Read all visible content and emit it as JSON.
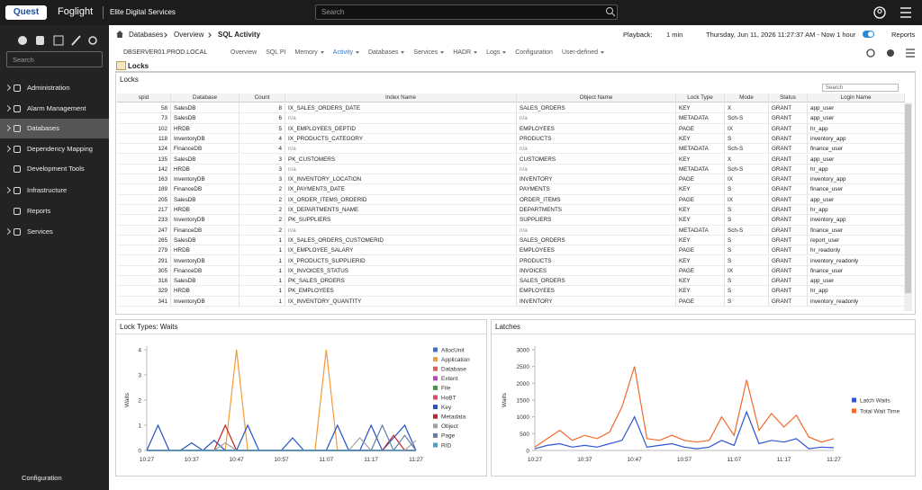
{
  "header": {
    "logo": "Quest",
    "product": "Foglight",
    "org": "Elite Digital Services",
    "search_placeholder": "Search"
  },
  "sidebar": {
    "search_placeholder": "Search",
    "items": [
      "Administration",
      "Alarm Management",
      "Databases",
      "Dependency Mapping",
      "Development Tools",
      "Infrastructure",
      "Reports",
      "Services"
    ],
    "active": "Databases",
    "footer": "Configuration"
  },
  "breadcrumb": [
    "Databases",
    "Overview",
    "SQL Activity"
  ],
  "toolbar": {
    "playback_label": "Playback:",
    "interval": "1 min",
    "time_range": "Thursday, Jun 11, 2026 11:27:37 AM - Now 1 hour",
    "reports": "Reports"
  },
  "server": "DBSERVER01.PROD.LOCAL",
  "tabs": [
    "Overview",
    "SQL PI",
    "Memory",
    "Activity",
    "Databases",
    "Services",
    "HADR",
    "Logs",
    "Configuration",
    "User-defined"
  ],
  "active_tab": "Activity",
  "page_title": "Locks",
  "locks_panel": {
    "title": "Locks",
    "search_placeholder": "Search",
    "columns": [
      "spid",
      "Database",
      "Count",
      "Index Name",
      "Object Name",
      "Lock Type",
      "Mode",
      "Status",
      "Login Name"
    ],
    "rows": [
      [
        58,
        "SalesDB",
        8,
        "IX_SALES_ORDERS_DATE",
        "SALES_ORDERS",
        "KEY",
        "X",
        "GRANT",
        "app_user"
      ],
      [
        73,
        "SalesDB",
        6,
        "n/a",
        "n/a",
        "METADATA",
        "Sch-S",
        "GRANT",
        "app_user"
      ],
      [
        102,
        "HRDB",
        5,
        "IX_EMPLOYEES_DEPTID",
        "EMPLOYEES",
        "PAGE",
        "IX",
        "GRANT",
        "hr_app"
      ],
      [
        118,
        "InventoryDB",
        4,
        "IX_PRODUCTS_CATEGORY",
        "PRODUCTS",
        "KEY",
        "S",
        "GRANT",
        "inventory_app"
      ],
      [
        124,
        "FinanceDB",
        4,
        "n/a",
        "n/a",
        "METADATA",
        "Sch-S",
        "GRANT",
        "finance_user"
      ],
      [
        135,
        "SalesDB",
        3,
        "PK_CUSTOMERS",
        "CUSTOMERS",
        "KEY",
        "X",
        "GRANT",
        "app_user"
      ],
      [
        142,
        "HRDB",
        3,
        "n/a",
        "n/a",
        "METADATA",
        "Sch-S",
        "GRANT",
        "hr_app"
      ],
      [
        163,
        "InventoryDB",
        3,
        "IX_INVENTORY_LOCATION",
        "INVENTORY",
        "PAGE",
        "IX",
        "GRANT",
        "inventory_app"
      ],
      [
        189,
        "FinanceDB",
        2,
        "IX_PAYMENTS_DATE",
        "PAYMENTS",
        "KEY",
        "S",
        "GRANT",
        "finance_user"
      ],
      [
        205,
        "SalesDB",
        2,
        "IX_ORDER_ITEMS_ORDERID",
        "ORDER_ITEMS",
        "PAGE",
        "IX",
        "GRANT",
        "app_user"
      ],
      [
        217,
        "HRDB",
        2,
        "IX_DEPARTMENTS_NAME",
        "DEPARTMENTS",
        "KEY",
        "S",
        "GRANT",
        "hr_app"
      ],
      [
        233,
        "InventoryDB",
        2,
        "PK_SUPPLIERS",
        "SUPPLIERS",
        "KEY",
        "S",
        "GRANT",
        "inventory_app"
      ],
      [
        247,
        "FinanceDB",
        2,
        "n/a",
        "n/a",
        "METADATA",
        "Sch-S",
        "GRANT",
        "finance_user"
      ],
      [
        265,
        "SalesDB",
        1,
        "IX_SALES_ORDERS_CUSTOMERID",
        "SALES_ORDERS",
        "KEY",
        "S",
        "GRANT",
        "report_user"
      ],
      [
        279,
        "HRDB",
        1,
        "IX_EMPLOYEE_SALARY",
        "EMPLOYEES",
        "PAGE",
        "S",
        "GRANT",
        "hr_readonly"
      ],
      [
        291,
        "InventoryDB",
        1,
        "IX_PRODUCTS_SUPPLIERID",
        "PRODUCTS",
        "KEY",
        "S",
        "GRANT",
        "inventory_readonly"
      ],
      [
        305,
        "FinanceDB",
        1,
        "IX_INVOICES_STATUS",
        "INVOICES",
        "PAGE",
        "IX",
        "GRANT",
        "finance_user"
      ],
      [
        318,
        "SalesDB",
        1,
        "PK_SALES_ORDERS",
        "SALES_ORDERS",
        "KEY",
        "S",
        "GRANT",
        "app_user"
      ],
      [
        329,
        "HRDB",
        1,
        "PK_EMPLOYEES",
        "EMPLOYEES",
        "KEY",
        "S",
        "GRANT",
        "hr_app"
      ],
      [
        341,
        "InventoryDB",
        1,
        "IX_INVENTORY_QUANTITY",
        "INVENTORY",
        "PAGE",
        "S",
        "GRANT",
        "inventory_readonly"
      ]
    ]
  },
  "chart_data": [
    {
      "type": "line",
      "title": "Lock Types: Waits",
      "ylabel": "Waits",
      "categories": [
        "10:27",
        null,
        null,
        null,
        "10:37",
        null,
        null,
        null,
        "10:47",
        null,
        null,
        null,
        "10:57",
        null,
        null,
        null,
        "11:07",
        null,
        null,
        null,
        "11:17",
        null,
        null,
        null,
        "11:27"
      ],
      "ylim": [
        0,
        4
      ],
      "yticks": [
        0,
        1,
        2,
        3,
        4
      ],
      "legend": "right",
      "series": [
        {
          "name": "AllocUnit",
          "color": "#3b6fd6",
          "values": [
            0,
            0,
            0,
            0,
            0,
            0,
            0,
            0,
            0,
            0,
            0,
            0,
            0,
            0,
            0,
            0,
            0,
            0,
            0,
            0,
            0,
            0,
            0,
            0,
            0
          ]
        },
        {
          "name": "Application",
          "color": "#f59a3a",
          "values": [
            0,
            0,
            0,
            0,
            0,
            0,
            0,
            0,
            4,
            0,
            0,
            0,
            0,
            0,
            0,
            0,
            4,
            0,
            0,
            0,
            0,
            0,
            0,
            0,
            0
          ]
        },
        {
          "name": "Database",
          "color": "#e0605c",
          "values": [
            0,
            0,
            0,
            0,
            0,
            0,
            0,
            0,
            0,
            0,
            0,
            0,
            0,
            0,
            0,
            0,
            0,
            0,
            0,
            0,
            0,
            0,
            0,
            0,
            0
          ]
        },
        {
          "name": "Extent",
          "color": "#c23fc2",
          "values": [
            0,
            0,
            0,
            0,
            0,
            0,
            0,
            0,
            0,
            0,
            0,
            0,
            0,
            0,
            0,
            0,
            0,
            0,
            0,
            0,
            0,
            0,
            0,
            0,
            0
          ]
        },
        {
          "name": "File",
          "color": "#3e9e3e",
          "values": [
            0,
            0,
            0,
            0,
            0,
            0,
            0,
            0,
            0,
            0,
            0,
            0,
            0,
            0,
            0,
            0,
            0,
            0,
            0,
            0,
            0,
            0,
            0,
            0,
            0
          ]
        },
        {
          "name": "HoBT",
          "color": "#e04a6a",
          "values": [
            0,
            0,
            0,
            0,
            0,
            0,
            0,
            0,
            0,
            0,
            0,
            0,
            0,
            0,
            0,
            0,
            0,
            0,
            0,
            0,
            0,
            0,
            0,
            0,
            0
          ]
        },
        {
          "name": "Key",
          "color": "#2454c4",
          "values": [
            0,
            1,
            0,
            0,
            0.3,
            0,
            0.4,
            0,
            0,
            1,
            0,
            0,
            0,
            0.5,
            0,
            0,
            0,
            1,
            0,
            0,
            1,
            0,
            0.5,
            1,
            0
          ]
        },
        {
          "name": "Metadata",
          "color": "#c22424",
          "values": [
            0,
            0,
            0,
            0,
            0,
            0,
            0,
            1,
            0,
            0,
            0,
            0,
            0,
            0,
            0,
            0,
            0,
            0,
            0,
            0,
            0,
            0,
            0.6,
            0,
            0
          ]
        },
        {
          "name": "Object",
          "color": "#a3a3a3",
          "values": [
            0,
            0,
            0,
            0,
            0,
            0,
            0,
            0.3,
            0,
            0,
            0,
            0,
            0,
            0,
            0,
            0,
            0,
            0,
            0,
            0.5,
            0,
            0,
            0,
            0,
            0.4
          ]
        },
        {
          "name": "Page",
          "color": "#5f7fa0",
          "values": [
            0,
            0,
            0,
            0,
            0,
            0,
            0,
            0,
            0,
            0,
            0,
            0,
            0,
            0,
            0,
            0,
            0,
            0,
            0,
            0,
            0,
            1,
            0,
            0.6,
            0
          ]
        },
        {
          "name": "RID",
          "color": "#3fa2d2",
          "values": [
            0,
            0,
            0,
            0,
            0,
            0,
            0,
            0,
            0,
            0,
            0,
            0,
            0,
            0,
            0,
            0,
            0,
            0,
            0,
            0,
            0,
            0,
            0,
            0,
            0
          ]
        }
      ]
    },
    {
      "type": "line",
      "title": "Latches",
      "ylabel": "Waits",
      "categories": [
        "10:27",
        null,
        null,
        null,
        "10:37",
        null,
        null,
        null,
        "10:47",
        null,
        null,
        null,
        "10:57",
        null,
        null,
        null,
        "11:07",
        null,
        null,
        null,
        "11:17",
        null,
        null,
        null,
        "11:27"
      ],
      "ylim": [
        0,
        3000
      ],
      "yticks": [
        0,
        500,
        1000,
        1500,
        2000,
        2500,
        3000
      ],
      "legend": "right",
      "series": [
        {
          "name": "Latch Waits",
          "color": "#2f55d4",
          "values": [
            50,
            150,
            200,
            100,
            150,
            100,
            200,
            300,
            1000,
            100,
            150,
            200,
            100,
            50,
            100,
            300,
            150,
            1150,
            200,
            300,
            250,
            350,
            50,
            100,
            80
          ]
        },
        {
          "name": "Total Wait Time",
          "color": "#f2692a",
          "values": [
            100,
            350,
            600,
            300,
            450,
            350,
            550,
            1300,
            2500,
            350,
            300,
            450,
            300,
            250,
            300,
            1000,
            450,
            2100,
            600,
            1100,
            700,
            1050,
            400,
            250,
            350
          ]
        }
      ]
    }
  ]
}
